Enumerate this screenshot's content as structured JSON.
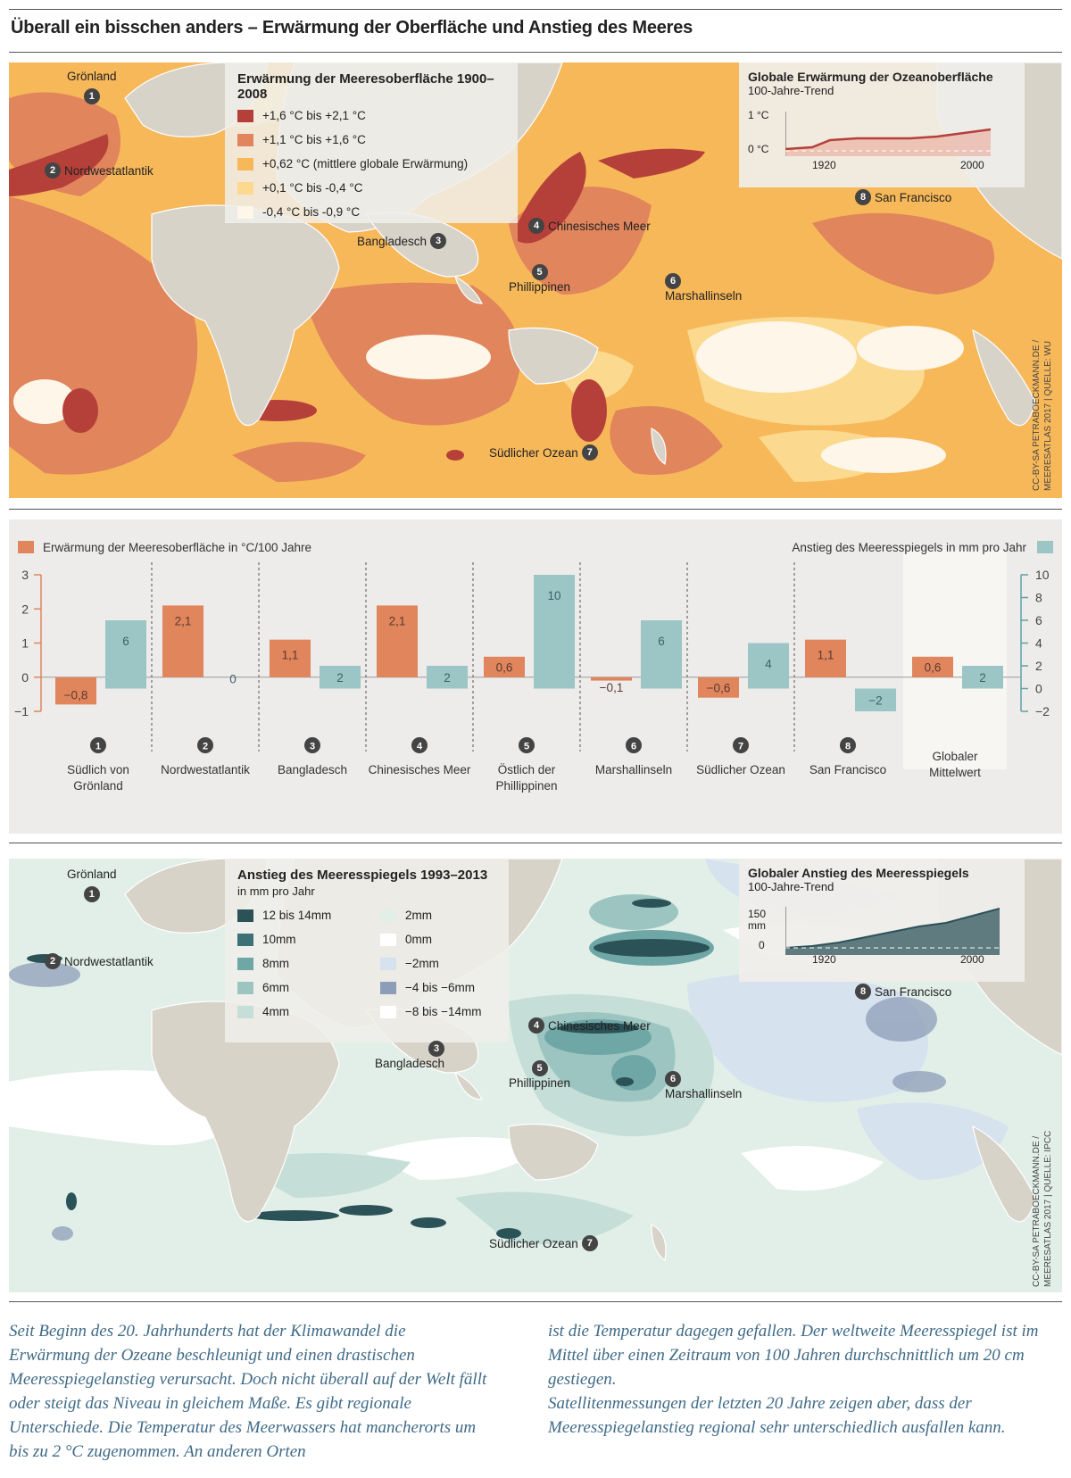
{
  "title": "Überall ein bisschen anders – Erwärmung der Oberfläche und Anstieg des Meeres",
  "colors": {
    "temp_1": "#b5403a",
    "temp_2": "#e0855c",
    "temp_3": "#f7b85a",
    "temp_4": "#fbd98f",
    "temp_5": "#fdf6e9",
    "sea_12": "#2b5257",
    "sea_10": "#3c7276",
    "sea_8": "#6fa6a6",
    "sea_6": "#9cc5c1",
    "sea_4": "#c5ded7",
    "sea_2": "#e2efe9",
    "sea_0": "#ffffff",
    "sea_m2": "#d6e2ee",
    "sea_m4": "#8d9db8",
    "land": "#d8d3c8",
    "bar_temp": "#e0855c",
    "bar_sea": "#9cc5c6"
  },
  "map_temp": {
    "legend_title": "Erwärmung der Meeresoberfläche 1900–2008",
    "legend": [
      {
        "label": "+1,6 °C bis +2,1 °C",
        "color": "#b5403a"
      },
      {
        "label": "+1,1 °C bis +1,6 °C",
        "color": "#e0855c"
      },
      {
        "label": "+0,62 °C (mittlere globale Erwärmung)",
        "color": "#f7b85a"
      },
      {
        "label": "+0,1 °C bis -0,4 °C",
        "color": "#fbd98f"
      },
      {
        "label": "-0,4 °C bis -0,9 °C",
        "color": "#fdf6e9"
      }
    ],
    "inset_title": "Globale Erwärmung der Ozeanoberfläche",
    "inset_sub": "100-Jahre-Trend",
    "inset_y_top": "1 °C",
    "inset_y_bottom": "0 °C",
    "inset_x_left": "1920",
    "inset_x_right": "2000",
    "credit_1": "CC-BY-SA PETRABOECKMANN.DE /",
    "credit_2": "MEERESATLAS 2017 | QUELLE: WU"
  },
  "markers": [
    {
      "n": "1",
      "label": "Grönland"
    },
    {
      "n": "2",
      "label": "Nordwestatlantik"
    },
    {
      "n": "3",
      "label": "Bangladesch"
    },
    {
      "n": "4",
      "label": "Chinesisches Meer"
    },
    {
      "n": "5",
      "label": "Phillippinen"
    },
    {
      "n": "6",
      "label": "Marshallinseln"
    },
    {
      "n": "7",
      "label": "Südlicher Ozean"
    },
    {
      "n": "8",
      "label": "San Francisco"
    }
  ],
  "chart_data": {
    "type": "bar",
    "categories": [
      "Südlich von Grönland",
      "Nordwestatlantik",
      "Bangladesch",
      "Chinesisches Meer",
      "Östlich der Phillippinen",
      "Marshallinseln",
      "Südlicher Ozean",
      "San Francisco",
      "Globaler Mittelwert"
    ],
    "category_numbers": [
      "1",
      "2",
      "3",
      "4",
      "5",
      "6",
      "7",
      "8",
      ""
    ],
    "series": [
      {
        "name": "Erwärmung der Meeresoberfläche in °C/100 Jahre",
        "axis": "left",
        "values": [
          -0.8,
          2.1,
          1.1,
          2.1,
          0.6,
          -0.1,
          -0.6,
          1.1,
          0.6
        ],
        "labels": [
          "−0,8",
          "2,1",
          "1,1",
          "2,1",
          "0,6",
          "−0,1",
          "−0,6",
          "1,1",
          "0,6"
        ]
      },
      {
        "name": "Anstieg des Meeresspiegels in mm pro Jahr",
        "axis": "right",
        "values": [
          6,
          0,
          2,
          2,
          10,
          6,
          4,
          -2,
          2
        ],
        "labels": [
          "6",
          "0",
          "2",
          "2",
          "10",
          "6",
          "4",
          "−2",
          "2"
        ]
      }
    ],
    "y_left": {
      "lim": [
        -1,
        3
      ],
      "ticks": [
        "−1",
        "0",
        "1",
        "2",
        "3"
      ]
    },
    "y_right": {
      "lim": [
        -2,
        10
      ],
      "ticks": [
        "−2",
        "0",
        "2",
        "4",
        "6",
        "8",
        "10"
      ]
    }
  },
  "map_sea": {
    "legend_title": "Anstieg des Meeresspiegels 1993–2013",
    "legend_sub": "in mm pro Jahr",
    "legend_col1": [
      {
        "label": "12 bis 14mm",
        "color": "#2b5257"
      },
      {
        "label": "10mm",
        "color": "#3c7276"
      },
      {
        "label": "8mm",
        "color": "#6fa6a6"
      },
      {
        "label": "6mm",
        "color": "#9cc5c1"
      },
      {
        "label": "4mm",
        "color": "#c5ded7"
      }
    ],
    "legend_col2": [
      {
        "label": "2mm",
        "color": "#e2efe9"
      },
      {
        "label": "0mm",
        "color": "#ffffff"
      },
      {
        "label": "−2mm",
        "color": "#d6e2ee"
      },
      {
        "label": "−4 bis −6mm",
        "color": "#8d9db8"
      },
      {
        "label": "−8 bis −14mm",
        "color": "#ffffff"
      }
    ],
    "inset_title": "Globaler Anstieg des Meeresspiegels",
    "inset_sub": "100-Jahre-Trend",
    "inset_y_top": "150 mm",
    "inset_y_bottom": "0",
    "inset_x_left": "1920",
    "inset_x_right": "2000",
    "credit_1": "CC-BY-SA PETRABOECKMANN.DE /",
    "credit_2": "MEERESATLAS 2017 | QUELLE: IPCC"
  },
  "text": {
    "left": "Seit Beginn des 20. Jahrhunderts hat der Klimawandel die Erwärmung der Ozeane beschleunigt und einen drastischen Meeresspiegelanstieg verursacht. Doch nicht überall auf der Welt fällt oder steigt das Niveau in gleichem Maße. Es gibt regionale Unterschiede. Die Temperatur des Meerwassers hat mancherorts um bis zu 2 °C zugenommen. An anderen Orten",
    "right_1": "ist die Temperatur dagegen gefallen. Der weltweite Meeresspiegel ist im Mittel über einen Zeitraum von 100 Jahren durchschnittlich um 20 cm gestiegen.",
    "right_2": "Satellitenmessungen der letzten 20 Jahre zeigen aber, dass der Meeresspiegelanstieg regional sehr unterschiedlich ausfallen kann."
  }
}
